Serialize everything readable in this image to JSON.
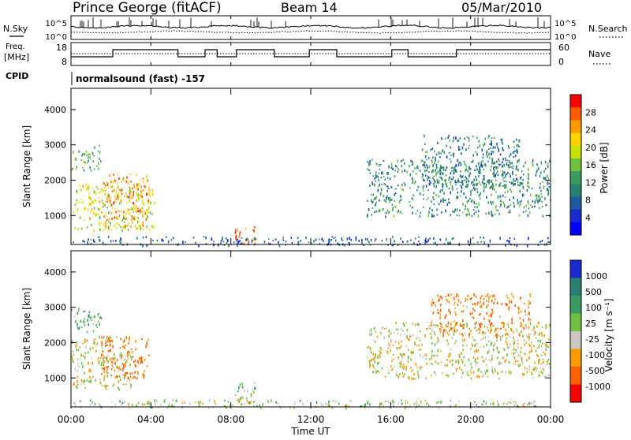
{
  "header": {
    "station": "Prince George (fitACF)",
    "beam": "Beam 14",
    "date": "05/Mar/2010"
  },
  "noise_panel": {
    "left_label": "N.Sky",
    "right_label": "N.Search",
    "ticks": [
      "10^5",
      "10^0"
    ]
  },
  "freq_panel": {
    "left_label_1": "Freq.",
    "left_label_2": "[MHz]",
    "left_ticks": [
      "18",
      "8"
    ],
    "right_label": "Nave",
    "right_ticks": [
      "60",
      "0"
    ],
    "cpid_label": "CPID",
    "cpid_text": "normalsound (fast) -157"
  },
  "power_colorbar": {
    "label": "Power [dB]",
    "ticks": [
      "28",
      "24",
      "20",
      "16",
      "12",
      "8",
      "4"
    ],
    "colors": [
      "#ff0000",
      "#ff5a00",
      "#ff9a00",
      "#ffd200",
      "#c8e000",
      "#6fc040",
      "#3c9a60",
      "#2a8070",
      "#1e5aa0",
      "#1a2ad0",
      "#0000ff"
    ]
  },
  "velocity_colorbar": {
    "label": "Velocity [m s⁻¹]",
    "ticks": [
      "1000",
      "500",
      "100",
      "25",
      "-25",
      "-100",
      "-500",
      "-1000"
    ],
    "colors": [
      "#1a2ad0",
      "#2a8070",
      "#3c9a60",
      "#6fc040",
      "#c8c8c0",
      "#ff9a00",
      "#ff6000",
      "#ff0000"
    ]
  },
  "chart_data": [
    {
      "type": "heatmap",
      "name": "power",
      "ylabel": "Slant Range [km]",
      "ylim": [
        180,
        4600
      ],
      "yticks": [
        "1000",
        "2000",
        "3000",
        "4000"
      ],
      "xlim": [
        0,
        24
      ],
      "regions": [
        {
          "t0": 0.1,
          "t1": 4.2,
          "r0": 600,
          "r1": 1900,
          "level": 18
        },
        {
          "t0": 1.5,
          "t1": 3.9,
          "r0": 700,
          "r1": 2200,
          "level": 24
        },
        {
          "t0": 0.0,
          "t1": 1.5,
          "r0": 2300,
          "r1": 3000,
          "level": 14
        },
        {
          "t0": 8.2,
          "t1": 9.2,
          "r0": 200,
          "r1": 700,
          "level": 26
        },
        {
          "t0": 14.8,
          "t1": 24.0,
          "r0": 1000,
          "r1": 2600,
          "level": 10
        },
        {
          "t0": 17.5,
          "t1": 22.5,
          "r0": 1800,
          "r1": 3300,
          "level": 9
        },
        {
          "t0": 0.0,
          "t1": 24.0,
          "r0": 180,
          "r1": 420,
          "level": 6
        }
      ]
    },
    {
      "type": "heatmap",
      "name": "velocity",
      "ylabel": "Slant Range [km]",
      "ylim": [
        180,
        4600
      ],
      "yticks": [
        "1000",
        "2000",
        "3000",
        "4000"
      ],
      "xlabel": "Time UT",
      "xlim": [
        0,
        24
      ],
      "xticks": [
        "00:00",
        "04:00",
        "08:00",
        "12:00",
        "16:00",
        "20:00",
        "00:00"
      ],
      "regions": [
        {
          "t0": 0.0,
          "t1": 3.0,
          "r0": 700,
          "r1": 2200,
          "level": 0
        },
        {
          "t0": 1.5,
          "t1": 4.0,
          "r0": 1000,
          "r1": 2200,
          "level": -150
        },
        {
          "t0": 0.0,
          "t1": 1.5,
          "r0": 2300,
          "r1": 3000,
          "level": 120
        },
        {
          "t0": 8.2,
          "t1": 9.2,
          "r0": 200,
          "r1": 900,
          "level": 60
        },
        {
          "t0": 14.8,
          "t1": 24.0,
          "r0": 1000,
          "r1": 2600,
          "level": 0
        },
        {
          "t0": 18.0,
          "t1": 23.0,
          "r0": 2200,
          "r1": 3400,
          "level": -120
        },
        {
          "t0": 0.0,
          "t1": 24.0,
          "r0": 180,
          "r1": 400,
          "level": 40
        }
      ]
    }
  ]
}
